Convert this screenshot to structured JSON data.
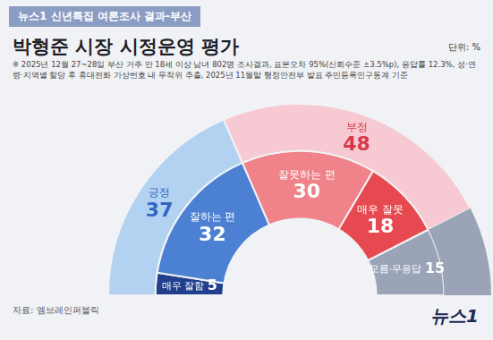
{
  "header": "뉴스1 신년특집 여론조사 결과-부산",
  "title": "박형준 시장 시정운영 평가",
  "unit": "단위: %",
  "note": "※ 2025년 12월 27~28일 부산 거주 만 18세 이상 남녀 802명 조사결과, 표본오차 95%(신뢰수준 ±3.5%p), 응답률 12.3%, 성·연령·지역별 할당 후 휴대전화 가상번호 내 무작위 추출, 2025년 11월말 행정안전부 발표 주민등록인구통계 기준",
  "source": "자료: 엠브레인퍼블릭",
  "logo": "뉴스1",
  "chart_data": {
    "type": "doughnut",
    "data_labels": true,
    "legend": false,
    "series": [
      {
        "categories": [
          "긍정",
          "부정"
        ],
        "values": [
          37,
          48
        ],
        "colors": [
          "#b3d2f2",
          "#f7c9d2"
        ]
      },
      {
        "categories": [
          "매우 잘함",
          "잘하는 편",
          "잘못하는 편",
          "매우 잘못",
          "모름·무응답"
        ],
        "values": [
          5,
          32,
          30,
          18,
          15
        ],
        "colors": [
          "#213f8c",
          "#4c80d2",
          "#ef8389",
          "#e64a50",
          "#9ba4b7"
        ]
      }
    ]
  }
}
